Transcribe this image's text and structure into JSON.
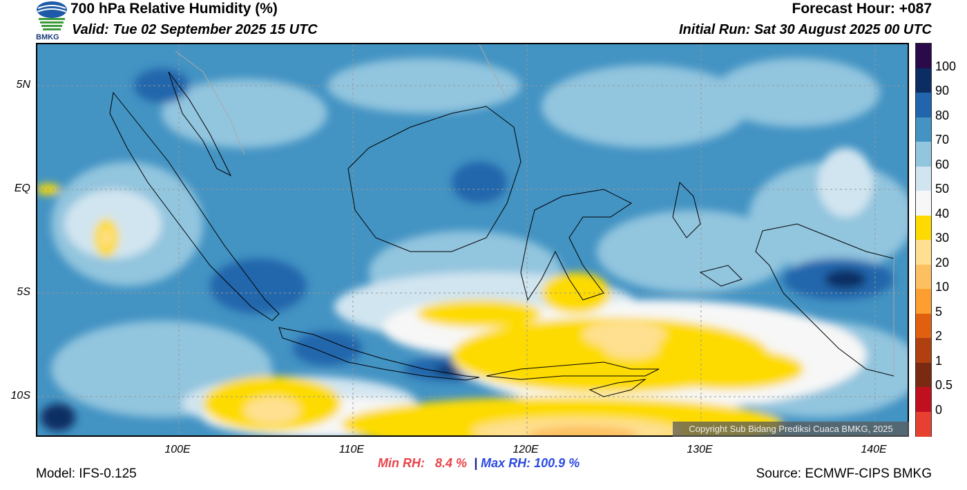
{
  "header": {
    "title": "700 hPa Relative Humidity (%)",
    "valid": "Valid: Tue 02 September 2025 15 UTC",
    "forecast_hour": "Forecast Hour: +087",
    "initial_run": "Initial Run: Sat 30 August 2025 00 UTC",
    "logo_text": "BMKG"
  },
  "axes": {
    "lat_labels": [
      "5N",
      "EQ",
      "5S",
      "10S"
    ],
    "lon_labels": [
      "100E",
      "110E",
      "120E",
      "130E",
      "140E"
    ]
  },
  "colorbar": {
    "labels": [
      "100",
      "90",
      "80",
      "70",
      "60",
      "50",
      "40",
      "30",
      "20",
      "10",
      "5",
      "2",
      "1",
      "0.5",
      "0"
    ],
    "colors": [
      "#2a0a4a",
      "#0b2d63",
      "#2166ac",
      "#4393c3",
      "#92c5de",
      "#d1e5f0",
      "#f7f7f7",
      "#fddb00",
      "#fee090",
      "#fdc060",
      "#fd9e30",
      "#e06010",
      "#b04010",
      "#7a2a10",
      "#c01020",
      "#e84030"
    ]
  },
  "stats": {
    "min_label": "Min RH:",
    "min_value": "8.4 %",
    "separator": "|",
    "max_label": "Max RH: 100.9 %"
  },
  "footer": {
    "model": "Model: IFS-0.125",
    "source": "Source: ECMWF-CIPS BMKG",
    "copyright": "Copyright Sub Bidang Prediksi Cuaca BMKG, 2025"
  }
}
